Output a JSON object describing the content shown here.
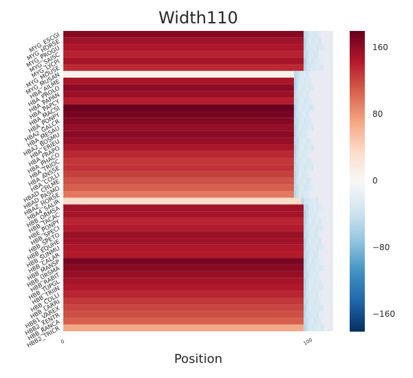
{
  "chart_data": {
    "type": "heatmap",
    "title": "Width110",
    "xlabel": "Position",
    "ylabel": "",
    "x_ticks": [
      0,
      100
    ],
    "x_tick_labels": [
      "0",
      "100"
    ],
    "colorbar": {
      "ticks": [
        -160,
        -80,
        0,
        80,
        160
      ],
      "tick_labels": [
        "−160",
        "−80",
        "0",
        "80",
        "160"
      ],
      "vmin": -180,
      "vmax": 180,
      "colormap": "RdBu_r"
    },
    "missing_color": "#eaeaf2",
    "rows": [
      {
        "label": "MYG_ESCGI",
        "value": 165,
        "length": 98
      },
      {
        "label": "MYG_HORSE",
        "value": 152,
        "length": 98
      },
      {
        "label": "MYG_PROGU",
        "value": 146,
        "length": 98
      },
      {
        "label": "MYG_SAISC",
        "value": 140,
        "length": 98
      },
      {
        "label": "MYG_LYCPI",
        "value": 150,
        "length": 98
      },
      {
        "label": "MYG_MOUSE",
        "value": 135,
        "length": 98
      },
      {
        "label": "MYG_MUSAN",
        "value": 8,
        "length": 94
      },
      {
        "label": "HBA_AILME",
        "value": 148,
        "length": 94
      },
      {
        "label": "HBA_PROLO",
        "value": 162,
        "length": 94
      },
      {
        "label": "HBA_PAPAN",
        "value": 155,
        "length": 94
      },
      {
        "label": "HBA_PAPCY",
        "value": 142,
        "length": 94
      },
      {
        "label": "HBA_MACSI",
        "value": 178,
        "length": 94
      },
      {
        "label": "HBA_PONPY",
        "value": 172,
        "length": 94
      },
      {
        "label": "HBA2_GALCR",
        "value": 166,
        "length": 94
      },
      {
        "label": "HBA_MESAU",
        "value": 158,
        "length": 94
      },
      {
        "label": "HBA2_BOSMU",
        "value": 163,
        "length": 94
      },
      {
        "label": "HBA_ERIEU",
        "value": 158,
        "length": 94
      },
      {
        "label": "HBA_FRAPO",
        "value": 148,
        "length": 94
      },
      {
        "label": "HBA_PHACO",
        "value": 136,
        "length": 94
      },
      {
        "label": "HBA_TRIOC",
        "value": 128,
        "length": 94
      },
      {
        "label": "HBA_ANSSE",
        "value": 131,
        "length": 94
      },
      {
        "label": "HBA_COLLI",
        "value": 124,
        "length": 94
      },
      {
        "label": "HBAD_CHLME",
        "value": 115,
        "length": 94
      },
      {
        "label": "HBAD_PASMO",
        "value": 108,
        "length": 94
      },
      {
        "label": "HBAZ_HORSE",
        "value": 95,
        "length": 94
      },
      {
        "label": "HBA4_SALIR",
        "value": 33,
        "length": 97
      },
      {
        "label": "HBB_ORMSA",
        "value": 152,
        "length": 98
      },
      {
        "label": "HBB_TACAC",
        "value": 150,
        "length": 98
      },
      {
        "label": "HBE_PONPY",
        "value": 138,
        "length": 98
      },
      {
        "label": "HBB_SPECI",
        "value": 143,
        "length": 98
      },
      {
        "label": "HBB_SPETO",
        "value": 155,
        "length": 98
      },
      {
        "label": "HBB_EQUHE",
        "value": 152,
        "length": 98
      },
      {
        "label": "HBB_SUNMU",
        "value": 146,
        "length": 98
      },
      {
        "label": "HBB_CALAR",
        "value": 143,
        "length": 98
      },
      {
        "label": "HBB_MANSP",
        "value": 172,
        "length": 98
      },
      {
        "label": "HBB_URSMA",
        "value": 164,
        "length": 98
      },
      {
        "label": "HBB_RABIT",
        "value": 158,
        "length": 98
      },
      {
        "label": "HBB_TUPGL",
        "value": 150,
        "length": 98
      },
      {
        "label": "HBB_TRIIN",
        "value": 144,
        "length": 98
      },
      {
        "label": "HBB_COLLI",
        "value": 138,
        "length": 98
      },
      {
        "label": "HBB_LARRI",
        "value": 128,
        "length": 98
      },
      {
        "label": "HBB1_VAREX",
        "value": 122,
        "length": 98
      },
      {
        "label": "HBB2_XENTR",
        "value": 116,
        "length": 98
      },
      {
        "label": "HBB_RANCA",
        "value": 108,
        "length": 98
      },
      {
        "label": "HBB2_TRICR",
        "value": 70,
        "length": 98
      }
    ]
  }
}
